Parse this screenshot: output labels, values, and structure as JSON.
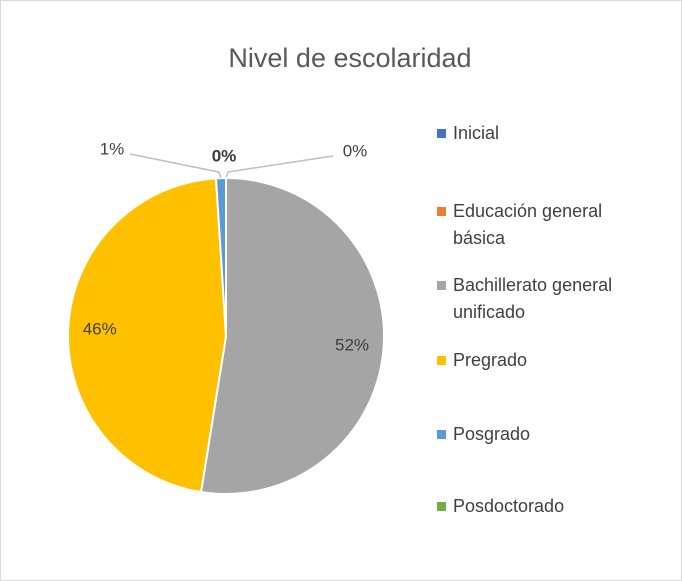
{
  "chart_data": {
    "type": "pie",
    "title": "Nivel de escolaridad",
    "categories": [
      "Inicial",
      "Educación general básica",
      "Bachillerato general unificado",
      "Pregrado",
      "Posgrado",
      "Posdoctorado"
    ],
    "values": [
      0,
      0,
      52,
      46,
      1,
      0
    ],
    "value_labels": [
      "0%",
      "0%",
      "52%",
      "46%",
      "1%",
      "0%"
    ],
    "colors": [
      "#4472c4",
      "#ed7d31",
      "#a5a5a5",
      "#ffc000",
      "#5b9bd5",
      "#70ad47"
    ],
    "legend": "right"
  }
}
